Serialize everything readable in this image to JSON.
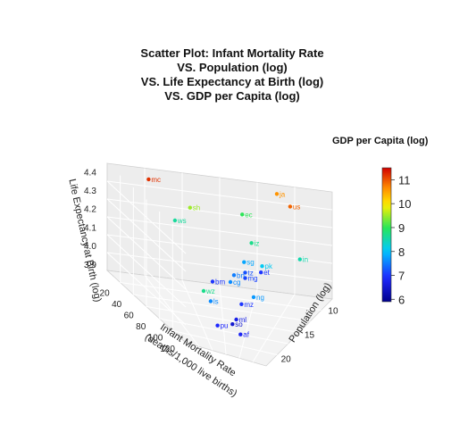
{
  "chart_data": {
    "type": "scatter",
    "title_lines": [
      "Scatter Plot: Infant Mortality Rate",
      "VS. Population (log)",
      "VS. Life Expectancy at Birth (log)",
      "VS. GDP per Capita (log)"
    ],
    "x_axis": {
      "label_line1": "Infant Mortality Rate",
      "label_line2": "(deaths/1,000 live births)",
      "ticks": [
        "20",
        "40",
        "60",
        "80",
        "100",
        "120"
      ],
      "range": [
        0,
        130
      ]
    },
    "y_axis": {
      "label": "Population (log)",
      "ticks": [
        "10",
        "15",
        "20"
      ],
      "range": [
        8,
        22
      ]
    },
    "z_axis": {
      "label": "Life Expectancy at Birth (log)",
      "ticks": [
        "3.9",
        "4.0",
        "4.1",
        "4.2",
        "4.3",
        "4.4"
      ],
      "range": [
        3.87,
        4.45
      ]
    },
    "colorbar": {
      "label": "GDP per Capita (log)",
      "ticks": [
        "6",
        "7",
        "8",
        "9",
        "10",
        "11"
      ],
      "range": [
        5.9,
        11.5
      ]
    },
    "labeled_points": [
      {
        "label": "mc",
        "imr": 3,
        "pop": 10.5,
        "le": 4.4,
        "gdp": 11.2
      },
      {
        "label": "ja",
        "imr": 3,
        "pop": 18.6,
        "le": 4.41,
        "gdp": 10.6
      },
      {
        "label": "us",
        "imr": 6,
        "pop": 19.5,
        "le": 4.36,
        "gdp": 10.9
      },
      {
        "label": "sh",
        "imr": 12,
        "pop": 13.0,
        "le": 4.3,
        "gdp": 9.5
      },
      {
        "label": "bm",
        "imr": 70,
        "pop": 14.0,
        "le": 4.08,
        "gdp": 7.0
      },
      {
        "label": "ec",
        "imr": 22,
        "pop": 16.5,
        "le": 4.33,
        "gdp": 9.0
      },
      {
        "label": "pk",
        "imr": 60,
        "pop": 18.5,
        "le": 4.18,
        "gdp": 8.1
      },
      {
        "label": "ng",
        "imr": 75,
        "pop": 18.0,
        "le": 4.05,
        "gdp": 7.7
      },
      {
        "label": "tz",
        "imr": 60,
        "pop": 17.0,
        "le": 4.13,
        "gdp": 7.2
      },
      {
        "label": "et",
        "imr": 55,
        "pop": 18.3,
        "le": 4.13,
        "gdp": 7.0
      },
      {
        "label": "cg",
        "imr": 72,
        "pop": 15.7,
        "le": 4.1,
        "gdp": 7.6
      },
      {
        "label": "mz",
        "imr": 75,
        "pop": 16.8,
        "le": 4.0,
        "gdp": 7.0
      },
      {
        "label": "mg",
        "imr": 60,
        "pop": 17.0,
        "le": 4.1,
        "gdp": 7.1
      },
      {
        "label": "ml",
        "imr": 105,
        "pop": 16.5,
        "le": 4.0,
        "gdp": 6.7
      },
      {
        "label": "so",
        "imr": 105,
        "pop": 16.0,
        "le": 3.97,
        "gdp": 6.5
      },
      {
        "label": "af",
        "imr": 120,
        "pop": 17.3,
        "le": 3.97,
        "gdp": 6.8
      },
      {
        "label": "pu",
        "imr": 96,
        "pop": 14.2,
        "le": 3.92,
        "gdp": 6.9
      },
      {
        "label": "ws",
        "imr": 12,
        "pop": 12.0,
        "le": 4.22,
        "gdp": 8.6
      },
      {
        "label": "wz",
        "imr": 48,
        "pop": 13.5,
        "le": 3.96,
        "gdp": 8.7
      },
      {
        "label": "ls",
        "imr": 55,
        "pop": 14.0,
        "le": 3.93,
        "gdp": 7.6
      },
      {
        "label": "iz",
        "imr": 28,
        "pop": 17.2,
        "le": 4.2,
        "gdp": 8.7
      },
      {
        "label": "in",
        "imr": 38,
        "pop": 21.0,
        "le": 4.18,
        "gdp": 8.5
      },
      {
        "label": "bn",
        "imr": 58,
        "pop": 16.0,
        "le": 4.1,
        "gdp": 7.5
      },
      {
        "label": "sg",
        "imr": 48,
        "pop": 16.8,
        "le": 4.15,
        "gdp": 7.8
      }
    ],
    "series_note": "",
    "grid": true
  }
}
